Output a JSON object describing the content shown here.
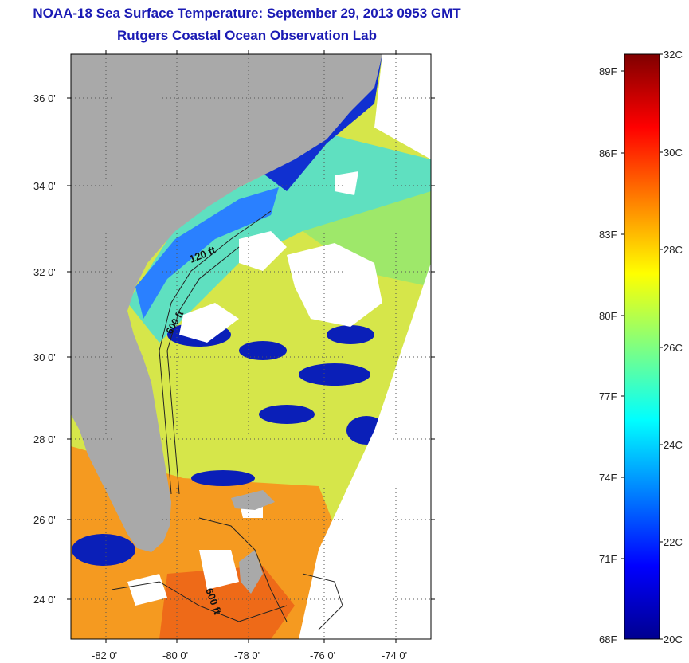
{
  "title": {
    "line1": "NOAA-18 Sea Surface Temperature:  September 29, 2013 0953 GMT",
    "line2": "Rutgers Coastal Ocean Observation Lab"
  },
  "map": {
    "lat_ticks": [
      "24 0'",
      "26 0'",
      "28 0'",
      "30 0'",
      "32 0'",
      "34 0'",
      "36 0'"
    ],
    "lon_ticks": [
      "-82 0'",
      "-80 0'",
      "-78 0'",
      "-76 0'",
      "-74 0'"
    ],
    "contour_labels": [
      "120 ft",
      "600 ft",
      "600 ft"
    ],
    "land_color": "#a9a9a9",
    "cloud_color": "#ffffff"
  },
  "colorbar": {
    "fahrenheit_labels": [
      "89F",
      "86F",
      "83F",
      "80F",
      "77F",
      "74F",
      "71F",
      "68F"
    ],
    "celsius_labels": [
      "32C",
      "30C",
      "28C",
      "26C",
      "24C",
      "22C",
      "20C"
    ],
    "range_c": [
      20,
      32
    ],
    "colors": [
      "#00008f",
      "#0000ff",
      "#0080ff",
      "#00ffff",
      "#80ff80",
      "#ffff00",
      "#ff8000",
      "#ff0000",
      "#800000"
    ]
  }
}
